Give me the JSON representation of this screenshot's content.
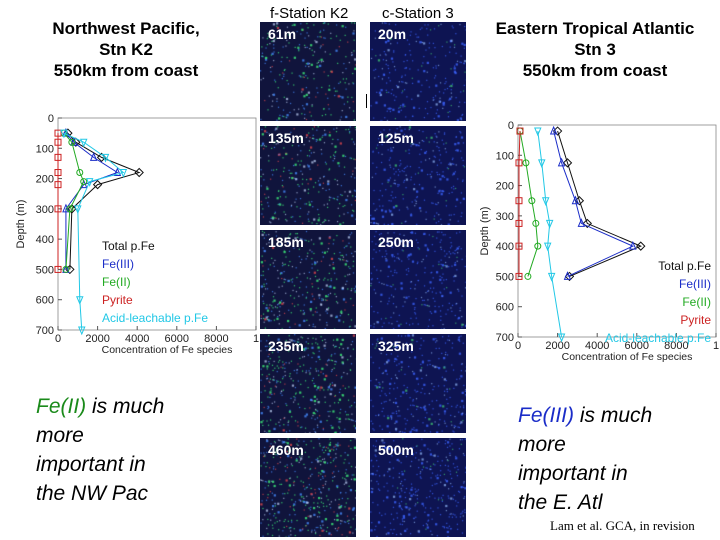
{
  "left_title": "Northwest Pacific,\nStn K2\n550km from coast",
  "right_title": "Eastern Tropical Atlantic\nStn 3\n550km from coast",
  "col_headers": [
    "f-Station K2",
    "c-Station 3"
  ],
  "micrographs": {
    "k2": [
      "61m",
      "135m",
      "185m",
      "235m",
      "460m"
    ],
    "stn3": [
      "20m",
      "125m",
      "250m",
      "325m",
      "500m"
    ],
    "k2_color": "#10143c",
    "stn3_color": "#0e1452"
  },
  "callouts": {
    "left": {
      "highlight": "Fe(II)",
      "rest": " is much\nmore\nimportant in\nthe NW Pac",
      "color": "#1a8a1a"
    },
    "right": {
      "highlight": "Fe(III)",
      "rest": " is much\nmore\nimportant in\nthe E. Atl",
      "color": "#1a2cc8"
    }
  },
  "citation": "Lam et al. GCA, in revision",
  "colors": {
    "total": "#111111",
    "fe3": "#1a2cc8",
    "fe2": "#22aa22",
    "pyrite": "#cc2222",
    "acid": "#22c8e6"
  },
  "chart_data": [
    {
      "type": "line",
      "xlabel": "Concentration of Fe species",
      "ylabel": "Depth (m)",
      "xlim": [
        0,
        10000
      ],
      "ylim": [
        700,
        0
      ],
      "xticks": [
        "0",
        "2000",
        "4000",
        "6000",
        "8000",
        "1"
      ],
      "yticks": [
        "0",
        "100",
        "200",
        "300",
        "400",
        "500",
        "600",
        "700"
      ],
      "legend_location": "middle-left",
      "series": [
        {
          "name": "Total p.Fe",
          "marker": "diamond",
          "points": [
            [
              500,
              50
            ],
            [
              900,
              80
            ],
            [
              2200,
              130
            ],
            [
              4100,
              180
            ],
            [
              2000,
              220
            ],
            [
              700,
              300
            ],
            [
              600,
              500
            ]
          ]
        },
        {
          "name": "Fe(III)",
          "marker": "triangle",
          "points": [
            [
              400,
              50
            ],
            [
              800,
              80
            ],
            [
              1800,
              130
            ],
            [
              3000,
              180
            ],
            [
              1300,
              220
            ],
            [
              400,
              300
            ],
            [
              400,
              500
            ]
          ]
        },
        {
          "name": "Fe(II)",
          "marker": "circle",
          "points": [
            [
              300,
              50
            ],
            [
              700,
              80
            ],
            [
              1100,
              180
            ],
            [
              1300,
              210
            ],
            [
              600,
              300
            ],
            [
              400,
              500
            ]
          ]
        },
        {
          "name": "Pyrite",
          "marker": "square",
          "points": [
            [
              0,
              50
            ],
            [
              0,
              80
            ],
            [
              0,
              130
            ],
            [
              0,
              180
            ],
            [
              0,
              220
            ],
            [
              0,
              300
            ],
            [
              0,
              500
            ]
          ]
        },
        {
          "name": "Acid-leachable p.Fe",
          "marker": "triangle-down",
          "points": [
            [
              300,
              50
            ],
            [
              1300,
              80
            ],
            [
              2400,
              130
            ],
            [
              3300,
              180
            ],
            [
              1600,
              210
            ],
            [
              1000,
              300
            ],
            [
              1100,
              600
            ],
            [
              1200,
              700
            ]
          ]
        }
      ]
    },
    {
      "type": "line",
      "xlabel": "Concentration of Fe species",
      "ylabel": "Depth (m)",
      "xlim": [
        0,
        10000
      ],
      "ylim": [
        700,
        0
      ],
      "xticks": [
        "0",
        "2000",
        "4000",
        "6000",
        "8000",
        "1"
      ],
      "yticks": [
        "0",
        "100",
        "200",
        "300",
        "400",
        "500",
        "600",
        "700"
      ],
      "legend_location": "middle-right",
      "series": [
        {
          "name": "Total p.Fe",
          "marker": "diamond",
          "points": [
            [
              2000,
              20
            ],
            [
              2500,
              125
            ],
            [
              3100,
              250
            ],
            [
              3500,
              325
            ],
            [
              6200,
              400
            ],
            [
              2600,
              500
            ]
          ]
        },
        {
          "name": "Fe(III)",
          "marker": "triangle",
          "points": [
            [
              1800,
              20
            ],
            [
              2200,
              125
            ],
            [
              2900,
              250
            ],
            [
              3200,
              325
            ],
            [
              5800,
              400
            ],
            [
              2500,
              500
            ]
          ]
        },
        {
          "name": "Fe(II)",
          "marker": "circle",
          "points": [
            [
              100,
              20
            ],
            [
              400,
              125
            ],
            [
              700,
              250
            ],
            [
              900,
              325
            ],
            [
              1000,
              400
            ],
            [
              500,
              500
            ]
          ]
        },
        {
          "name": "Pyrite",
          "marker": "square",
          "points": [
            [
              100,
              20
            ],
            [
              50,
              125
            ],
            [
              50,
              250
            ],
            [
              50,
              325
            ],
            [
              50,
              400
            ],
            [
              50,
              500
            ]
          ]
        },
        {
          "name": "Acid-leachable p.Fe",
          "marker": "triangle-down",
          "points": [
            [
              1000,
              20
            ],
            [
              1200,
              125
            ],
            [
              1400,
              250
            ],
            [
              1600,
              325
            ],
            [
              1500,
              400
            ],
            [
              1700,
              500
            ],
            [
              2200,
              700
            ]
          ]
        }
      ]
    }
  ]
}
